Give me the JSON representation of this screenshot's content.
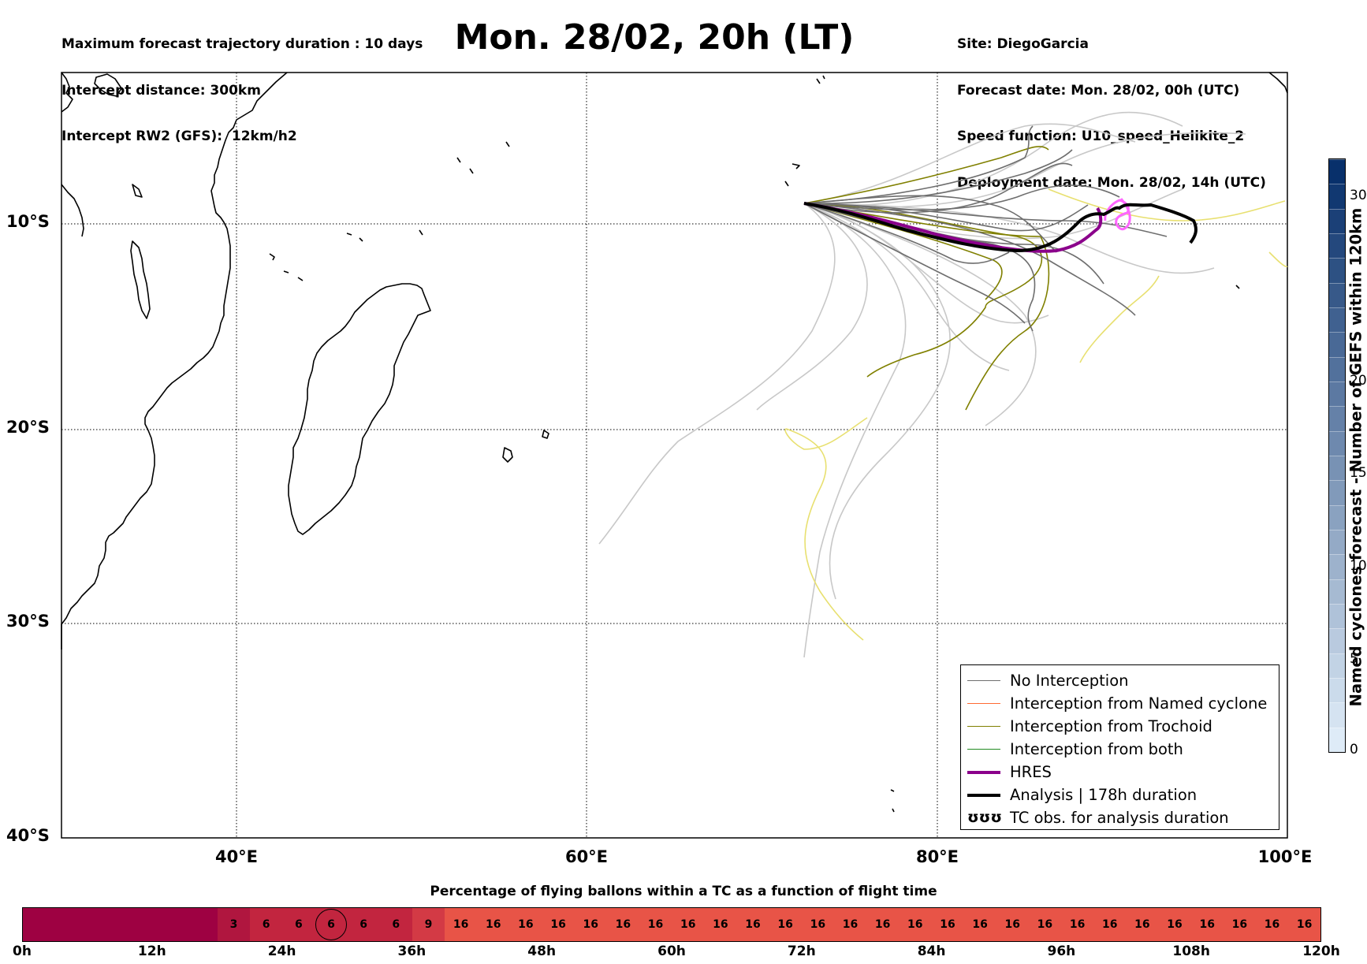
{
  "header": {
    "left_lines": [
      "Maximum forecast trajectory duration : 10 days",
      "Intercept distance: 300km",
      "Intercept RW2 (GFS):  12km/h2"
    ],
    "title": "Mon. 28/02, 20h (LT)",
    "right_lines": [
      "Site: DiegoGarcia",
      "Forecast date: Mon. 28/02, 00h (UTC)",
      "Speed function: U10_speed_Helikite_2",
      "Deployment date: Mon. 28/02, 14h (UTC)"
    ]
  },
  "map": {
    "lat_ticks": [
      "10°S",
      "20°S",
      "30°S",
      "40°S"
    ],
    "lon_ticks": [
      "40°E",
      "60°E",
      "80°E",
      "100°E"
    ],
    "extent": {
      "lon": [
        30,
        100
      ],
      "lat": [
        -40,
        -1
      ]
    },
    "colors": {
      "no_interception": "#6e6e6e",
      "named_cyclone": "#ff6a33",
      "trochoid": "#808000",
      "both": "#228b22",
      "hres": "#8b008b",
      "analysis": "#000000",
      "tc_obs": "#ff66ff",
      "ensemble_light": "#c8c8c8",
      "yellow_tracks": "#e8e070"
    }
  },
  "legend": {
    "items": [
      {
        "label": "No Interception",
        "style": "gray"
      },
      {
        "label": "Interception from Named cyclone",
        "style": "orange"
      },
      {
        "label": "Interception from Trochoid",
        "style": "olive"
      },
      {
        "label": "Interception from both",
        "style": "green"
      },
      {
        "label": "HRES",
        "style": "purple"
      },
      {
        "label": "Analysis | 178h duration",
        "style": "black"
      },
      {
        "label": "TC obs. for analysis duration",
        "style": "glyph",
        "glyph": "ʊʊʊ"
      }
    ]
  },
  "colorbar": {
    "label": "Named cyclones forecast - Number of GEFS within 120km",
    "ticks": [
      "0",
      "5",
      "10",
      "15",
      "20",
      "30"
    ],
    "range": [
      0,
      32
    ]
  },
  "flight_bar": {
    "title": "Percentage of flying ballons within a TC as a function of flight time",
    "cells": [
      {
        "value": "",
        "color": "#9e0142"
      },
      {
        "value": "",
        "color": "#9e0142"
      },
      {
        "value": "",
        "color": "#9e0142"
      },
      {
        "value": "",
        "color": "#9e0142"
      },
      {
        "value": "",
        "color": "#9e0142"
      },
      {
        "value": "",
        "color": "#9e0142"
      },
      {
        "value": "3",
        "color": "#b0163f"
      },
      {
        "value": "6",
        "color": "#c2253f"
      },
      {
        "value": "6",
        "color": "#c2253f"
      },
      {
        "value": "6",
        "color": "#c2253f",
        "circled": true
      },
      {
        "value": "6",
        "color": "#c2253f"
      },
      {
        "value": "6",
        "color": "#c2253f"
      },
      {
        "value": "9",
        "color": "#d33a45"
      },
      {
        "value": "16",
        "color": "#e85447"
      },
      {
        "value": "16",
        "color": "#e85447"
      },
      {
        "value": "16",
        "color": "#e85447"
      },
      {
        "value": "16",
        "color": "#e85447"
      },
      {
        "value": "16",
        "color": "#e85447"
      },
      {
        "value": "16",
        "color": "#e85447"
      },
      {
        "value": "16",
        "color": "#e85447"
      },
      {
        "value": "16",
        "color": "#e85447"
      },
      {
        "value": "16",
        "color": "#e85447"
      },
      {
        "value": "16",
        "color": "#e85447"
      },
      {
        "value": "16",
        "color": "#e85447"
      },
      {
        "value": "16",
        "color": "#e85447"
      },
      {
        "value": "16",
        "color": "#e85447"
      },
      {
        "value": "16",
        "color": "#e85447"
      },
      {
        "value": "16",
        "color": "#e85447"
      },
      {
        "value": "16",
        "color": "#e85447"
      },
      {
        "value": "16",
        "color": "#e85447"
      },
      {
        "value": "16",
        "color": "#e85447"
      },
      {
        "value": "16",
        "color": "#e85447"
      },
      {
        "value": "16",
        "color": "#e85447"
      },
      {
        "value": "16",
        "color": "#e85447"
      },
      {
        "value": "16",
        "color": "#e85447"
      },
      {
        "value": "16",
        "color": "#e85447"
      },
      {
        "value": "16",
        "color": "#e85447"
      },
      {
        "value": "16",
        "color": "#e85447"
      },
      {
        "value": "16",
        "color": "#e85447"
      },
      {
        "value": "16",
        "color": "#e85447"
      }
    ],
    "hour_ticks": [
      "0h",
      "12h",
      "24h",
      "36h",
      "48h",
      "60h",
      "72h",
      "84h",
      "96h",
      "108h",
      "120h"
    ]
  }
}
